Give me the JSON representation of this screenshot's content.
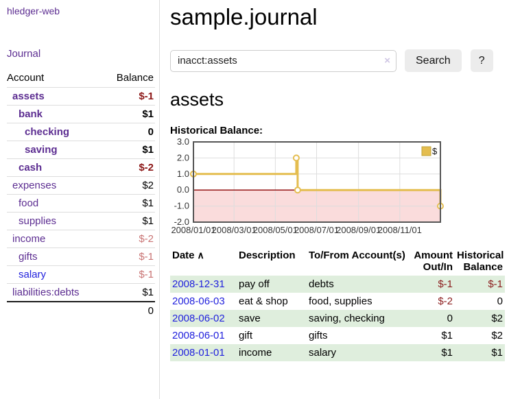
{
  "app": {
    "brand": "hledger-web",
    "nav_journal": "Journal"
  },
  "sidebar": {
    "account_header": "Account",
    "balance_header": "Balance",
    "accounts": [
      {
        "name": "assets",
        "level": 1,
        "current": true,
        "balance": "$-1",
        "tone": "neg-strong",
        "link": "purple"
      },
      {
        "name": "bank",
        "level": 2,
        "current": true,
        "balance": "$1",
        "tone": "normal",
        "link": "purple"
      },
      {
        "name": "checking",
        "level": 3,
        "current": true,
        "balance": "0",
        "tone": "normal",
        "link": "purple"
      },
      {
        "name": "saving",
        "level": 3,
        "current": true,
        "balance": "$1",
        "tone": "normal",
        "link": "purple"
      },
      {
        "name": "cash",
        "level": 2,
        "current": true,
        "balance": "$-2",
        "tone": "neg-strong",
        "link": "purple"
      },
      {
        "name": "expenses",
        "level": 1,
        "current": false,
        "balance": "$2",
        "tone": "normal",
        "link": "purple"
      },
      {
        "name": "food",
        "level": 2,
        "current": false,
        "balance": "$1",
        "tone": "normal",
        "link": "purple"
      },
      {
        "name": "supplies",
        "level": 2,
        "current": false,
        "balance": "$1",
        "tone": "normal",
        "link": "purple"
      },
      {
        "name": "income",
        "level": 1,
        "current": false,
        "balance": "$-2",
        "tone": "neg-soft",
        "link": "purple"
      },
      {
        "name": "gifts",
        "level": 2,
        "current": false,
        "balance": "$-1",
        "tone": "neg-soft",
        "link": "purple"
      },
      {
        "name": "salary",
        "level": 2,
        "current": false,
        "balance": "$-1",
        "tone": "neg-soft",
        "link": "blue"
      },
      {
        "name": "liabilities:debts",
        "level": 1,
        "current": false,
        "balance": "$1",
        "tone": "normal",
        "link": "purple"
      }
    ],
    "total": "0"
  },
  "main": {
    "title": "sample.journal",
    "search": {
      "value": "inacct:assets",
      "clear_icon": "×",
      "search_button": "Search",
      "help_button": "?"
    },
    "account_heading": "assets"
  },
  "chart_data": {
    "type": "line",
    "step": true,
    "title": "Historical Balance:",
    "series": [
      {
        "name": "$",
        "color": "#e4bd4f",
        "points": [
          [
            "2008-01-01",
            1
          ],
          [
            "2008-06-01",
            2
          ],
          [
            "2008-06-03",
            0
          ],
          [
            "2008-12-31",
            -1
          ]
        ]
      }
    ],
    "x_range": [
      "2008-01-01",
      "2008-12-31"
    ],
    "x_ticks": [
      "2008/01/01",
      "2008/03/01",
      "2008/05/01",
      "2008/07/01",
      "2008/09/01",
      "2008/11/01"
    ],
    "y_ticks": [
      3.0,
      2.0,
      1.0,
      0.0,
      -1.0,
      -2.0
    ],
    "ylim": [
      -2,
      3
    ],
    "grid": true,
    "legend": "$",
    "legend_position": "top-right",
    "negative_region_color": "#fadcdc",
    "zero_line_color": "#8b0000"
  },
  "transactions": {
    "columns": {
      "date": "Date",
      "sort_icon": "∧",
      "description": "Description",
      "accounts": "To/From Account(s)",
      "amount": "Amount Out/In",
      "balance": "Historical Balance"
    },
    "rows": [
      {
        "date": "2008-12-31",
        "description": "pay off",
        "accounts": "debts",
        "amount": "$-1",
        "amount_tone": "neg",
        "balance": "$-1",
        "balance_tone": "neg"
      },
      {
        "date": "2008-06-03",
        "description": "eat & shop",
        "accounts": "food, supplies",
        "amount": "$-2",
        "amount_tone": "neg",
        "balance": "0",
        "balance_tone": "normal"
      },
      {
        "date": "2008-06-02",
        "description": "save",
        "accounts": "saving, checking",
        "amount": "0",
        "amount_tone": "normal",
        "balance": "$2",
        "balance_tone": "normal"
      },
      {
        "date": "2008-06-01",
        "description": "gift",
        "accounts": "gifts",
        "amount": "$1",
        "amount_tone": "normal",
        "balance": "$2",
        "balance_tone": "normal"
      },
      {
        "date": "2008-01-01",
        "description": "income",
        "accounts": "salary",
        "amount": "$1",
        "amount_tone": "normal",
        "balance": "$1",
        "balance_tone": "normal"
      }
    ]
  },
  "colors": {
    "link_purple": "#5c2d91",
    "link_blue": "#2222dd",
    "negative_strong": "#8b1515",
    "negative_soft": "#c97474",
    "row_shade_green": "#dfeedd",
    "chart_line": "#e4bd4f",
    "chart_negative_region": "#fadcdc",
    "chart_zero_line": "#8b0000",
    "button_bg": "#ececec"
  }
}
